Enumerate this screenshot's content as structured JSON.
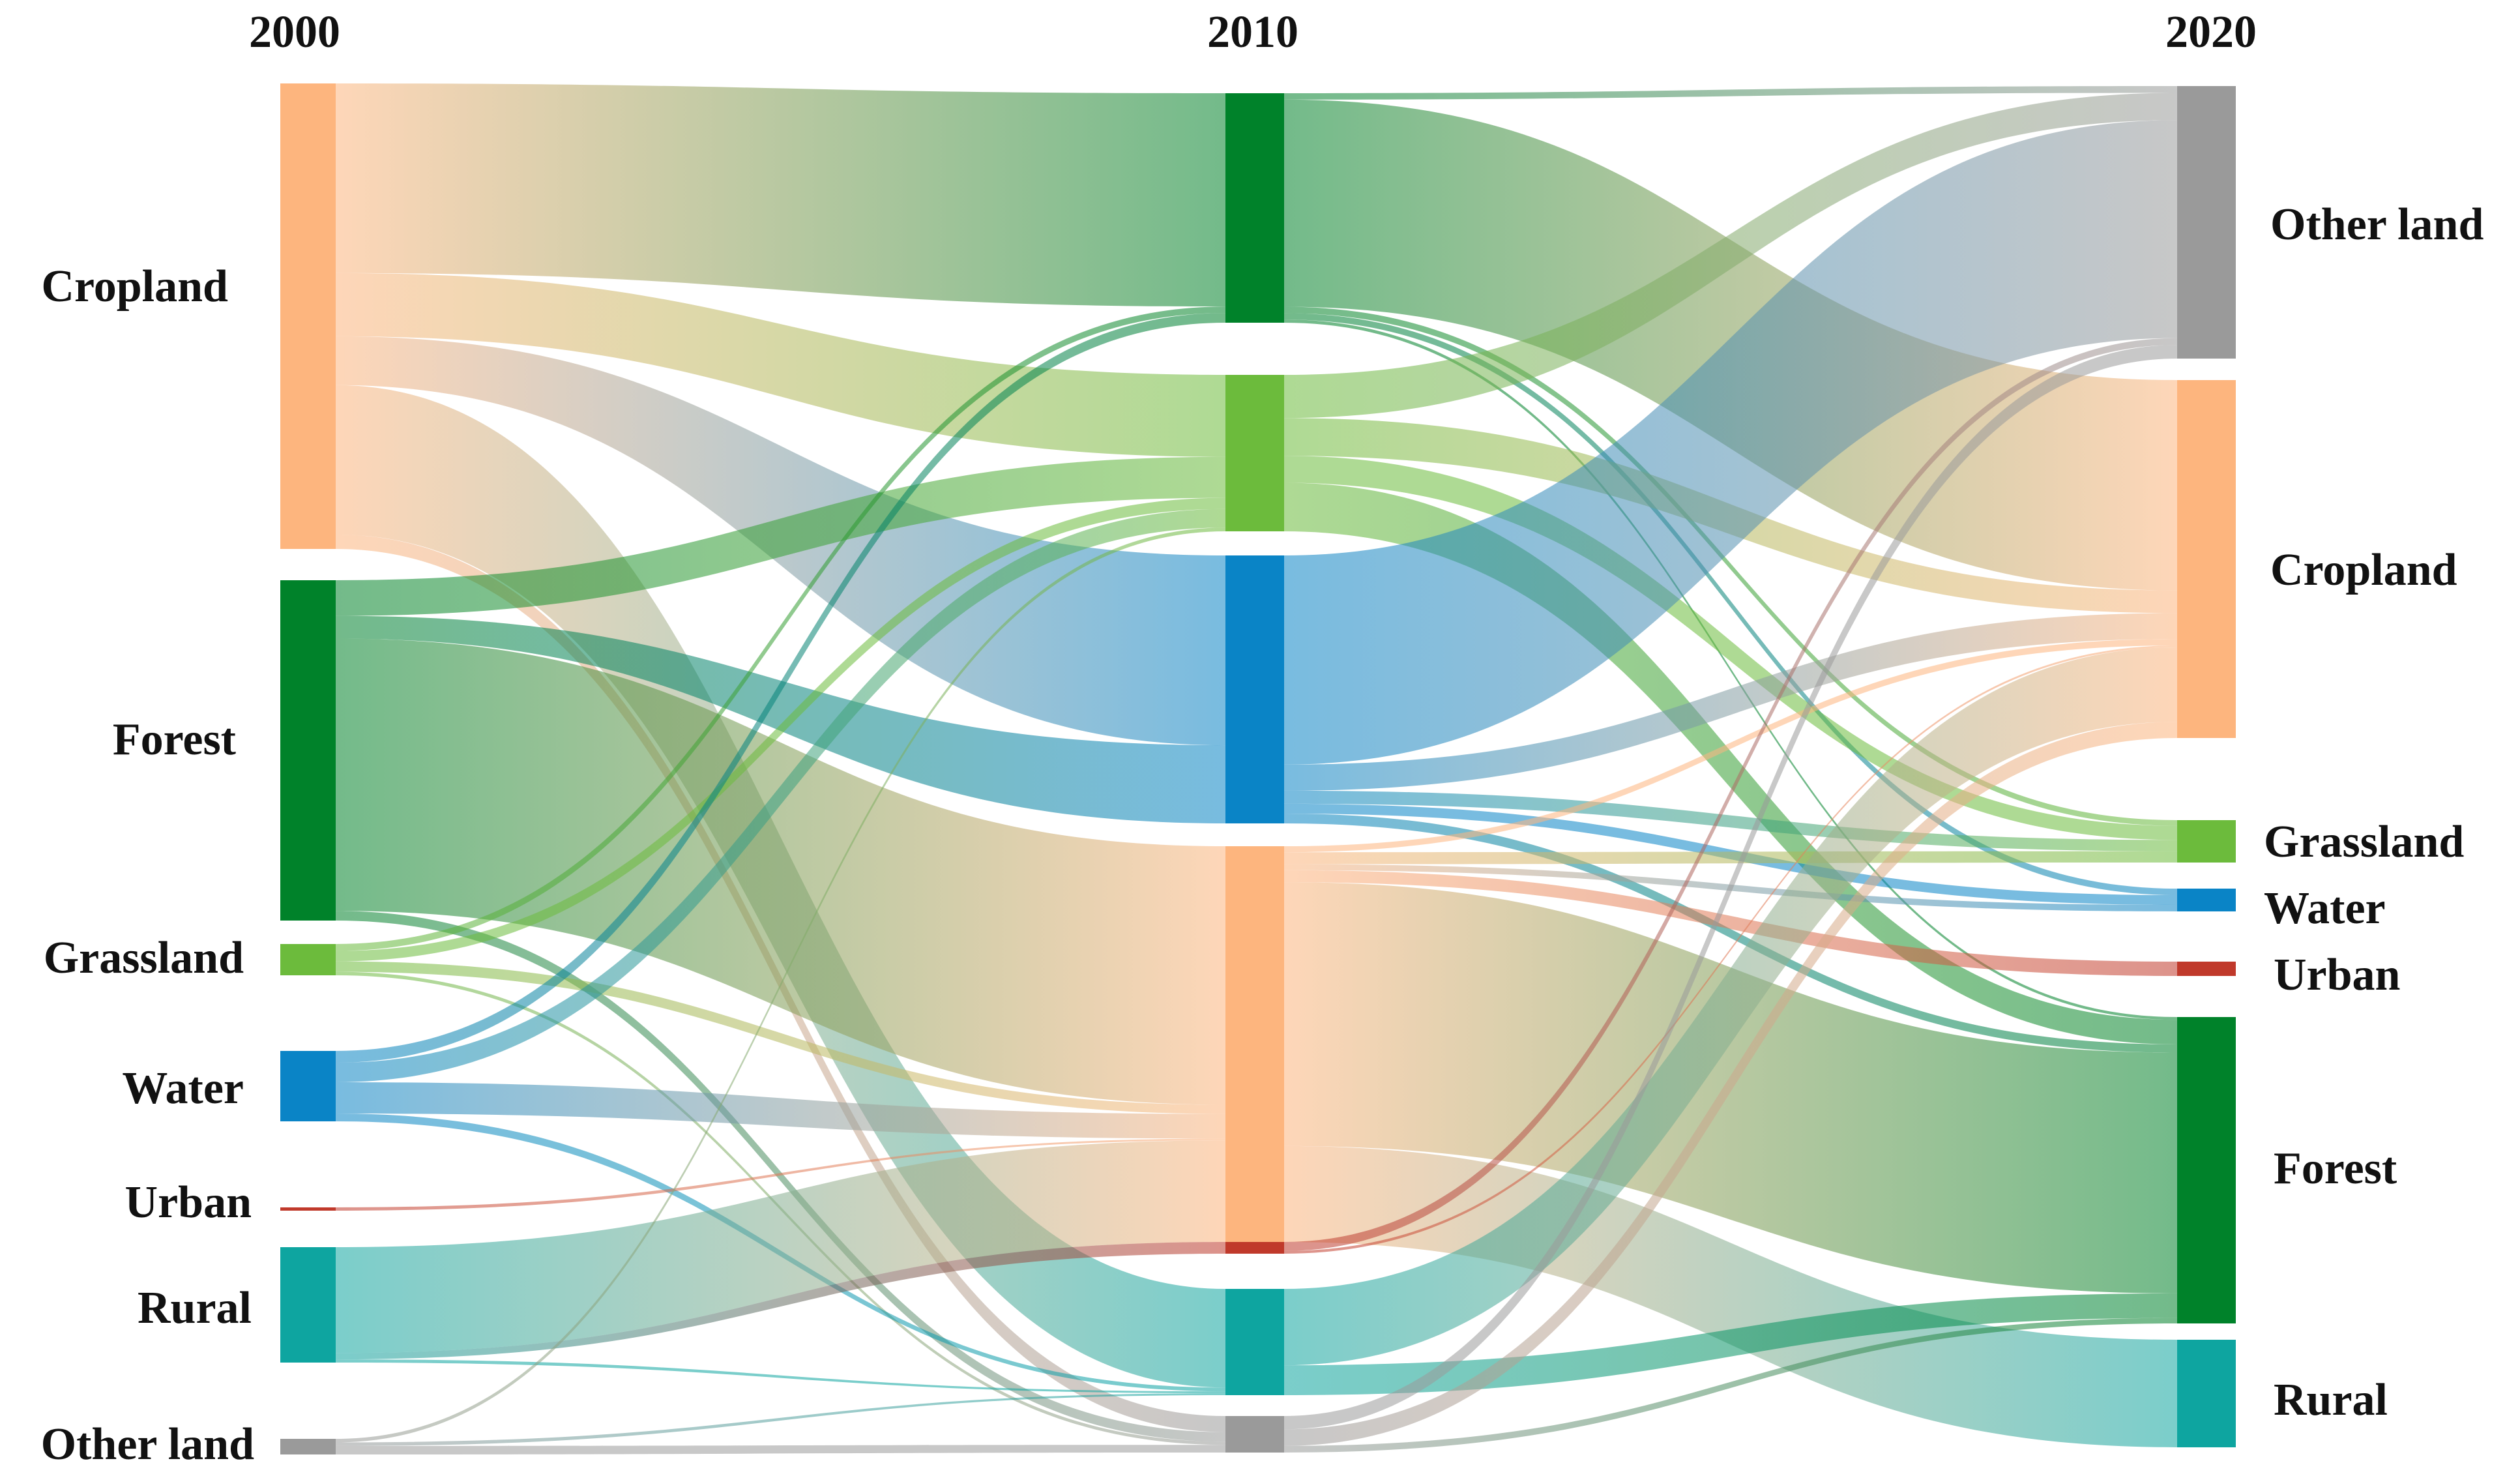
{
  "years": [
    "2000",
    "2010",
    "2020"
  ],
  "colors": {
    "Cropland": "#FDB57E",
    "Forest": "#00822A",
    "Grassland": "#6CBB3C",
    "Water": "#0A84C6",
    "Urban": "#C0392B",
    "Rural": "#0EA5A0",
    "Other land": "#9A9A9A"
  },
  "columns": [
    {
      "year": "2000",
      "nodes": [
        {
          "name": "Cropland",
          "label": "Cropland"
        },
        {
          "name": "Forest",
          "label": "Forest"
        },
        {
          "name": "Grassland",
          "label": "Grassland"
        },
        {
          "name": "Water",
          "label": "Water"
        },
        {
          "name": "Urban",
          "label": "Urban"
        },
        {
          "name": "Rural",
          "label": "Rural"
        },
        {
          "name": "Other land",
          "label": "Other land"
        }
      ]
    },
    {
      "year": "2010",
      "nodes": [
        {
          "name": "Forest",
          "label": ""
        },
        {
          "name": "Grassland",
          "label": ""
        },
        {
          "name": "Water",
          "label": ""
        },
        {
          "name": "Cropland",
          "label": ""
        },
        {
          "name": "Urban",
          "label": ""
        },
        {
          "name": "Rural",
          "label": ""
        },
        {
          "name": "Other land",
          "label": ""
        }
      ]
    },
    {
      "year": "2020",
      "nodes": [
        {
          "name": "Other land",
          "label": "Other land"
        },
        {
          "name": "Cropland",
          "label": "Cropland"
        },
        {
          "name": "Grassland",
          "label": "Grassland"
        },
        {
          "name": "Water",
          "label": "Water"
        },
        {
          "name": "Urban",
          "label": "Urban"
        },
        {
          "name": "Forest",
          "label": "Forest"
        },
        {
          "name": "Rural",
          "label": "Rural"
        }
      ]
    }
  ],
  "flows_2000_2010": [
    [
      "Cropland",
      "Forest",
      330
    ],
    [
      "Cropland",
      "Grassland",
      110
    ],
    [
      "Cropland",
      "Water",
      85
    ],
    [
      "Cropland",
      "Rural",
      260
    ],
    [
      "Cropland",
      "Other land",
      25
    ],
    [
      "Forest",
      "Grassland",
      55
    ],
    [
      "Forest",
      "Water",
      35
    ],
    [
      "Forest",
      "Cropland",
      420
    ],
    [
      "Forest",
      "Other land",
      15
    ],
    [
      "Grassland",
      "Forest",
      10
    ],
    [
      "Grassland",
      "Grassland",
      15
    ],
    [
      "Grassland",
      "Cropland",
      15
    ],
    [
      "Grassland",
      "Other land",
      5
    ],
    [
      "Water",
      "Forest",
      15
    ],
    [
      "Water",
      "Grassland",
      25
    ],
    [
      "Water",
      "Cropland",
      40
    ],
    [
      "Water",
      "Rural",
      10
    ],
    [
      "Urban",
      "Cropland",
      3
    ],
    [
      "Rural",
      "Cropland",
      165
    ],
    [
      "Rural",
      "Urban",
      10
    ],
    [
      "Rural",
      "Rural",
      5
    ],
    [
      "Other land",
      "Grassland",
      5
    ],
    [
      "Other land",
      "Rural",
      5
    ],
    [
      "Other land",
      "Other land",
      12
    ]
  ],
  "flows_2010_2020": [
    [
      "Forest",
      "Other land",
      10
    ],
    [
      "Forest",
      "Cropland",
      325
    ],
    [
      "Forest",
      "Grassland",
      10
    ],
    [
      "Forest",
      "Water",
      10
    ],
    [
      "Forest",
      "Forest",
      5
    ],
    [
      "Grassland",
      "Other land",
      40
    ],
    [
      "Grassland",
      "Cropland",
      35
    ],
    [
      "Grassland",
      "Forest",
      45
    ],
    [
      "Grassland",
      "Grassland",
      25
    ],
    [
      "Water",
      "Other land",
      320
    ],
    [
      "Water",
      "Cropland",
      40
    ],
    [
      "Water",
      "Grassland",
      20
    ],
    [
      "Water",
      "Water",
      15
    ],
    [
      "Water",
      "Forest",
      15
    ],
    [
      "Cropland",
      "Cropland",
      10
    ],
    [
      "Cropland",
      "Grassland",
      20
    ],
    [
      "Cropland",
      "Water",
      10
    ],
    [
      "Cropland",
      "Urban",
      20
    ],
    [
      "Cropland",
      "Forest",
      440
    ],
    [
      "Cropland",
      "Rural",
      160
    ],
    [
      "Urban",
      "Other land",
      10
    ],
    [
      "Urban",
      "Cropland",
      3
    ],
    [
      "Rural",
      "Cropland",
      115
    ],
    [
      "Rural",
      "Forest",
      45
    ],
    [
      "Other land",
      "Other land",
      20
    ],
    [
      "Other land",
      "Cropland",
      25
    ],
    [
      "Other land",
      "Forest",
      10
    ]
  ]
}
